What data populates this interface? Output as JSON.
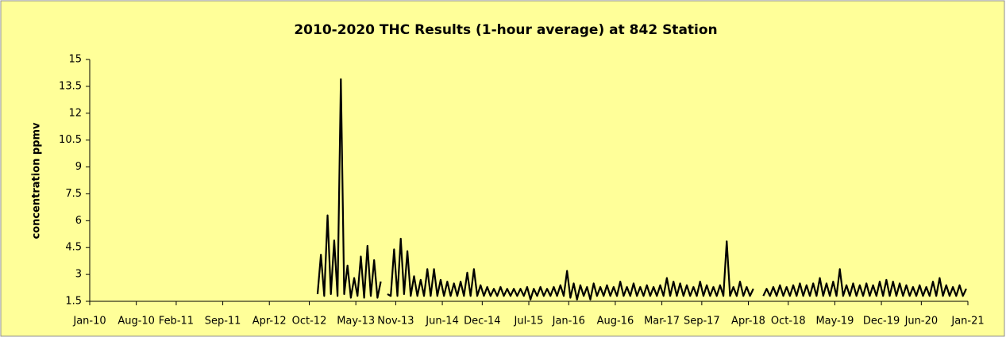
{
  "chart_data": {
    "type": "line",
    "title": "2010-2020 THC Results (1-hour average) at 842 Station",
    "y_label": "concentration ppmv",
    "ylim": [
      1.5,
      15
    ],
    "yticks": [
      1.5,
      3,
      4.5,
      6,
      7.5,
      9,
      10.5,
      12,
      13.5,
      15
    ],
    "xlim": [
      "Jan-10",
      "Jan-21"
    ],
    "xticks": [
      "Jan-10",
      "Aug-10",
      "Feb-11",
      "Sep-11",
      "Apr-12",
      "Oct-12",
      "May-13",
      "Nov-13",
      "Jun-14",
      "Dec-14",
      "Jul-15",
      "Jan-16",
      "Aug-16",
      "Mar-17",
      "Sep-17",
      "Apr-18",
      "Oct-18",
      "May-19",
      "Dec-19",
      "Jun-20",
      "Jan-21"
    ],
    "grid": false,
    "series": [
      {
        "color": "#000000",
        "x": [
          "Nov-12",
          "Nov-12",
          "Dec-12",
          "Dec-12",
          "Jan-13",
          "Jan-13",
          "Feb-13",
          "Feb-13",
          "Mar-13",
          "Mar-13",
          "Apr-13",
          "Apr-13",
          "May-13",
          "May-13",
          "Jun-13",
          "Jun-13",
          "Jul-13",
          "Jul-13",
          "Aug-13",
          "Aug-13",
          "Sep-13",
          "Sep-13",
          "Oct-13",
          "Oct-13",
          "Nov-13",
          "Nov-13",
          "Dec-13",
          "Dec-13",
          "Jan-14",
          "Jan-14",
          "Feb-14",
          "Feb-14",
          "Mar-14",
          "Mar-14",
          "Apr-14",
          "Apr-14",
          "May-14",
          "May-14",
          "Jun-14",
          "Jun-14",
          "Jul-14",
          "Jul-14",
          "Aug-14",
          "Aug-14",
          "Sep-14",
          "Sep-14",
          "Oct-14",
          "Oct-14",
          "Nov-14",
          "Nov-14",
          "Dec-14",
          "Dec-14",
          "Jan-15",
          "Jan-15",
          "Feb-15",
          "Feb-15",
          "Mar-15",
          "Mar-15",
          "Apr-15",
          "Apr-15",
          "May-15",
          "May-15",
          "Jun-15",
          "Jun-15",
          "Jul-15",
          "Jul-15",
          "Aug-15",
          "Aug-15",
          "Sep-15",
          "Sep-15",
          "Oct-15",
          "Oct-15",
          "Nov-15",
          "Nov-15",
          "Dec-15",
          "Dec-15",
          "Jan-16",
          "Jan-16",
          "Feb-16",
          "Feb-16",
          "Mar-16",
          "Mar-16",
          "Apr-16",
          "Apr-16",
          "May-16",
          "May-16",
          "Jun-16",
          "Jun-16",
          "Jul-16",
          "Jul-16",
          "Aug-16",
          "Aug-16",
          "Sep-16",
          "Sep-16",
          "Oct-16",
          "Oct-16",
          "Nov-16",
          "Nov-16",
          "Dec-16",
          "Dec-16",
          "Jan-17",
          "Jan-17",
          "Feb-17",
          "Feb-17",
          "Mar-17",
          "Mar-17",
          "Apr-17",
          "Apr-17",
          "May-17",
          "May-17",
          "Jun-17",
          "Jun-17",
          "Jul-17",
          "Jul-17",
          "Aug-17",
          "Aug-17",
          "Sep-17",
          "Sep-17",
          "Oct-17",
          "Oct-17",
          "Nov-17",
          "Nov-17",
          "Dec-17",
          "Dec-17",
          "Jan-18",
          "Jan-18",
          "Feb-18",
          "Feb-18",
          "Mar-18",
          "Mar-18",
          "Apr-18",
          "Apr-18",
          "May-18",
          "May-18",
          "Jun-18",
          "Jun-18",
          "Jul-18",
          "Jul-18",
          "Aug-18",
          "Aug-18",
          "Sep-18",
          "Sep-18",
          "Oct-18",
          "Oct-18",
          "Nov-18",
          "Nov-18",
          "Dec-18",
          "Dec-18",
          "Jan-19",
          "Jan-19",
          "Feb-19",
          "Feb-19",
          "Mar-19",
          "Mar-19",
          "Apr-19",
          "Apr-19",
          "May-19",
          "May-19",
          "Jun-19",
          "Jun-19",
          "Jul-19",
          "Jul-19",
          "Aug-19",
          "Aug-19",
          "Sep-19",
          "Sep-19",
          "Oct-19",
          "Oct-19",
          "Nov-19",
          "Nov-19",
          "Dec-19",
          "Dec-19",
          "Jan-20",
          "Jan-20",
          "Feb-20",
          "Feb-20",
          "Mar-20",
          "Mar-20",
          "Apr-20",
          "Apr-20",
          "May-20",
          "May-20",
          "Jun-20",
          "Jun-20",
          "Jul-20",
          "Jul-20",
          "Aug-20",
          "Aug-20",
          "Sep-20",
          "Sep-20",
          "Oct-20",
          "Oct-20",
          "Nov-20",
          "Nov-20",
          "Dec-20",
          "Dec-20"
        ],
        "values": [
          1.9,
          4.1,
          1.8,
          6.3,
          1.9,
          4.9,
          1.8,
          13.9,
          1.9,
          3.5,
          1.7,
          2.8,
          1.8,
          4.0,
          1.7,
          4.6,
          1.8,
          3.8,
          1.7,
          2.6,
          null,
          1.9,
          1.8,
          4.4,
          1.8,
          5.0,
          1.9,
          4.3,
          1.8,
          2.9,
          1.8,
          2.7,
          1.8,
          3.3,
          1.8,
          3.3,
          1.8,
          2.7,
          1.8,
          2.6,
          1.8,
          2.5,
          1.8,
          2.6,
          1.8,
          3.1,
          1.8,
          3.3,
          1.8,
          2.4,
          1.8,
          2.3,
          1.8,
          2.2,
          1.8,
          2.3,
          1.8,
          2.2,
          1.8,
          2.2,
          1.8,
          2.2,
          1.8,
          2.3,
          1.6,
          2.2,
          1.8,
          2.3,
          1.8,
          2.2,
          1.8,
          2.3,
          1.8,
          2.4,
          1.8,
          3.2,
          1.7,
          2.5,
          1.6,
          2.4,
          1.8,
          2.3,
          1.6,
          2.5,
          1.8,
          2.3,
          1.8,
          2.4,
          1.8,
          2.3,
          1.8,
          2.6,
          1.8,
          2.3,
          1.8,
          2.5,
          1.8,
          2.3,
          1.8,
          2.4,
          1.8,
          2.3,
          1.8,
          2.4,
          1.8,
          2.8,
          1.8,
          2.6,
          1.8,
          2.5,
          1.8,
          2.4,
          1.8,
          2.3,
          1.8,
          2.6,
          1.8,
          2.4,
          1.8,
          2.3,
          1.8,
          2.4,
          1.8,
          4.85,
          1.8,
          2.3,
          1.8,
          2.6,
          1.8,
          2.3,
          1.8,
          2.2,
          null,
          null,
          1.8,
          2.2,
          1.8,
          2.3,
          1.8,
          2.4,
          1.8,
          2.3,
          1.8,
          2.4,
          1.8,
          2.5,
          1.8,
          2.4,
          1.8,
          2.5,
          1.8,
          2.8,
          1.8,
          2.5,
          1.8,
          2.6,
          1.8,
          3.3,
          1.8,
          2.4,
          1.8,
          2.5,
          1.8,
          2.4,
          1.8,
          2.5,
          1.8,
          2.4,
          1.8,
          2.6,
          1.8,
          2.7,
          1.8,
          2.6,
          1.8,
          2.5,
          1.8,
          2.4,
          1.8,
          2.3,
          1.8,
          2.4,
          1.8,
          2.3,
          1.8,
          2.6,
          1.8,
          2.8,
          1.8,
          2.4,
          1.8,
          2.3,
          1.8,
          2.4,
          1.8,
          2.2
        ]
      }
    ]
  }
}
